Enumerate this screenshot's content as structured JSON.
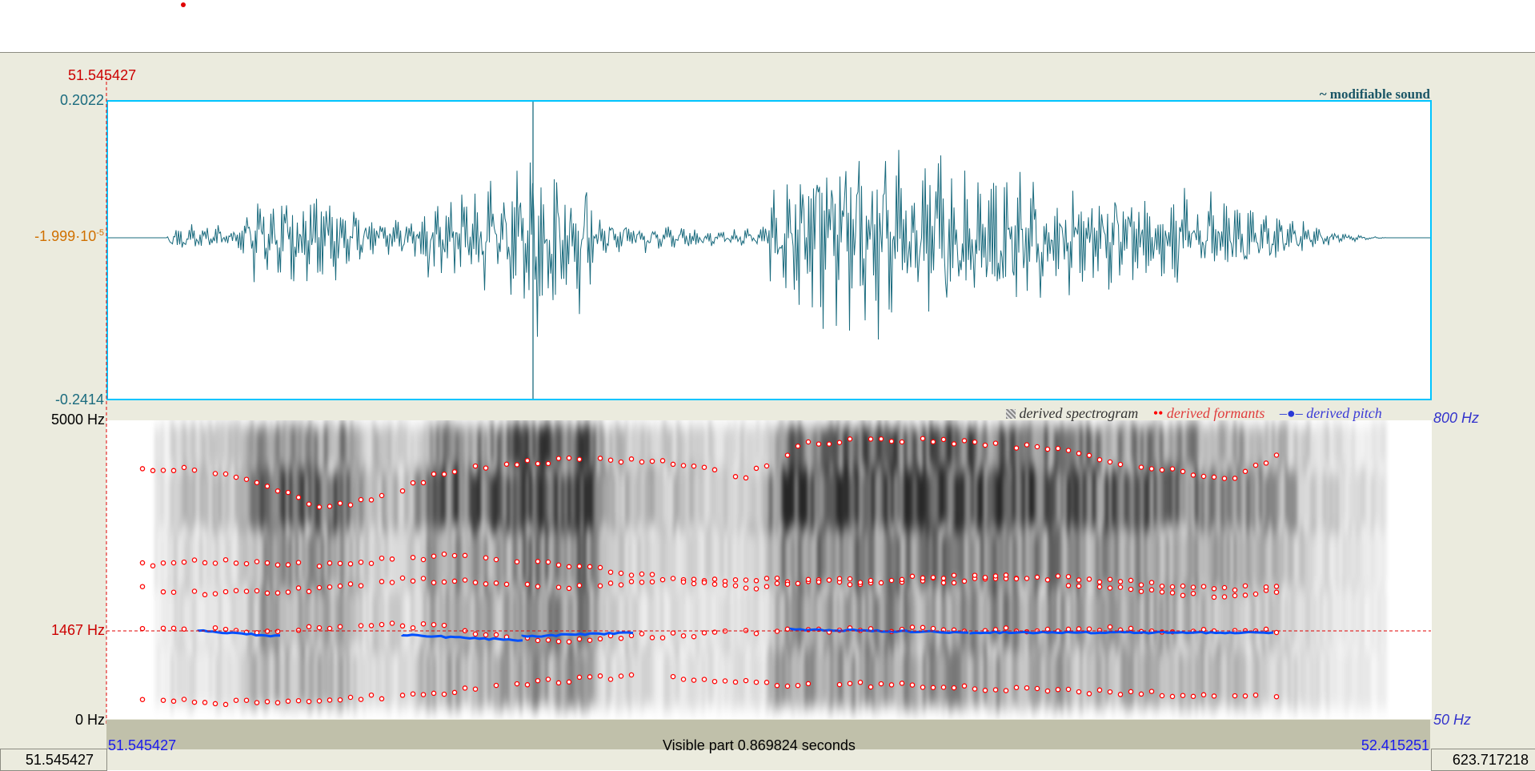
{
  "window": {
    "selection_start": "51.545427",
    "sound_label": "~ modifiable sound"
  },
  "waveform": {
    "y_max_label": "0.2022",
    "y_mid_label": "-1.999·10",
    "y_mid_label_exp": "-5",
    "y_min_label": "-0.2414",
    "color": "#1a6b7e",
    "border_color": "#00c4ff"
  },
  "spectrogram": {
    "freq_max_label": "5000 Hz",
    "freq_cursor_label": "1467 Hz",
    "freq_min_label": "0 Hz",
    "pitch_max_label": "800 Hz",
    "pitch_min_label": "50 Hz",
    "legend": {
      "spectrogram": "derived spectrogram",
      "formants": "derived formants",
      "pitch": "derived pitch"
    },
    "formant_color": "#ff0000",
    "pitch_color": "#0050ff"
  },
  "time_axis": {
    "visible_start": "51.545427",
    "visible_end": "52.415251",
    "visible_part": "Visible part 0.869824 seconds",
    "total_start": "51.545427",
    "total_end": "623.717218"
  }
}
